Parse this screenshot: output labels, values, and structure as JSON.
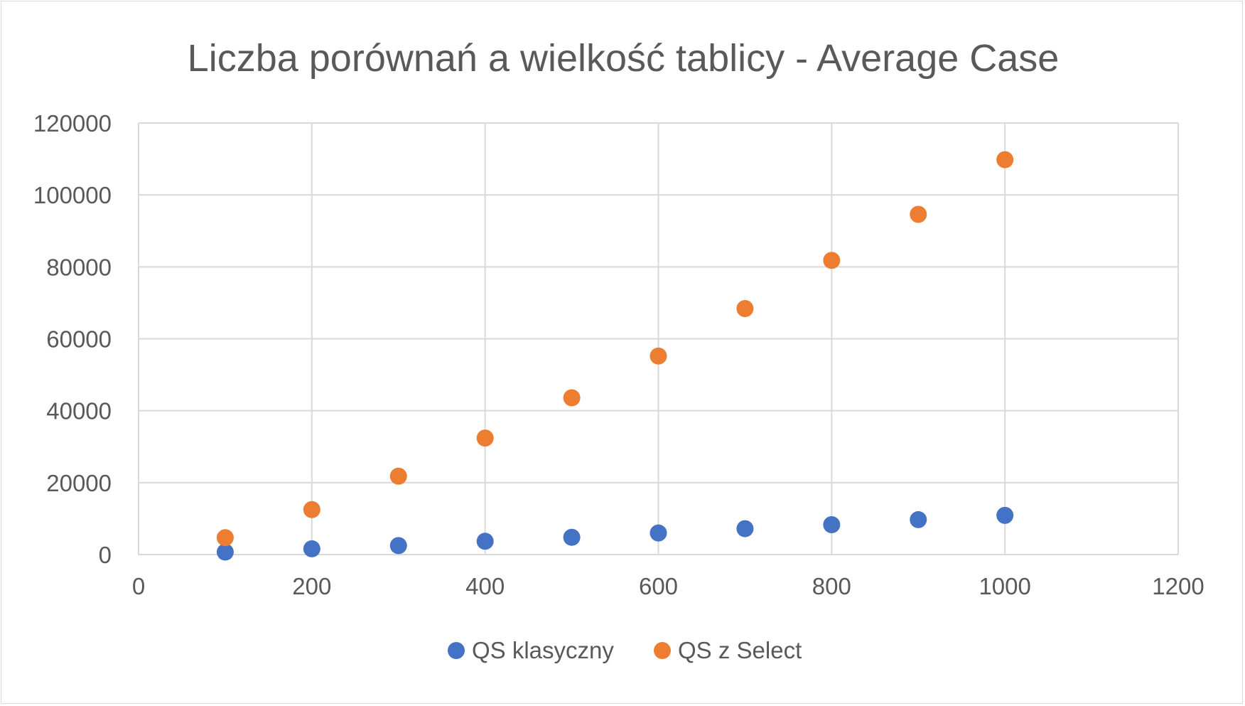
{
  "chart_data": {
    "type": "scatter",
    "title": "Liczba porównań a wielkość tablicy - Average Case",
    "xlabel": "",
    "ylabel": "",
    "xlim": [
      0,
      1200
    ],
    "ylim": [
      0,
      120000
    ],
    "x_ticks": [
      "0",
      "200",
      "400",
      "600",
      "800",
      "1000",
      "1200"
    ],
    "y_ticks": [
      "0",
      "20000",
      "40000",
      "60000",
      "80000",
      "100000",
      "120000"
    ],
    "grid": true,
    "legend_position": "bottom",
    "series": [
      {
        "name": "QS klasyczny",
        "color": "#4472C4",
        "x": [
          100,
          200,
          300,
          400,
          500,
          600,
          700,
          800,
          900,
          1000
        ],
        "y": [
          700,
          1600,
          2500,
          3700,
          4800,
          6000,
          7200,
          8300,
          9700,
          10900
        ]
      },
      {
        "name": "QS z Select",
        "color": "#ED7D31",
        "x": [
          100,
          200,
          300,
          400,
          500,
          600,
          700,
          800,
          900,
          1000
        ],
        "y": [
          4700,
          12500,
          21800,
          32400,
          43600,
          55200,
          68400,
          81800,
          94600,
          109800
        ]
      }
    ]
  }
}
